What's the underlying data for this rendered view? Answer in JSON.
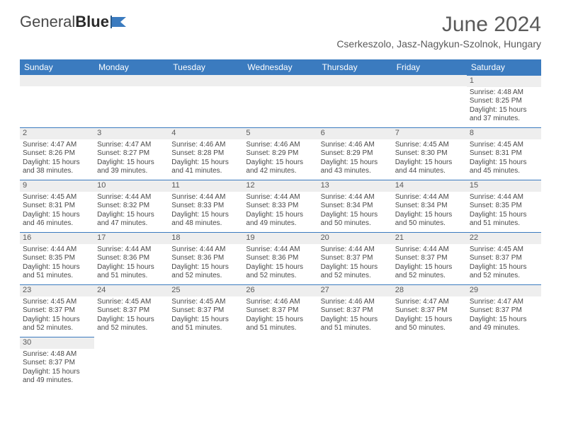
{
  "logo": {
    "text1": "General",
    "text2": "Blue"
  },
  "title": "June 2024",
  "location": "Cserkeszolo, Jasz-Nagykun-Szolnok, Hungary",
  "day_names": [
    "Sunday",
    "Monday",
    "Tuesday",
    "Wednesday",
    "Thursday",
    "Friday",
    "Saturday"
  ],
  "colors": {
    "header_bg": "#3b7bbf",
    "header_fg": "#ffffff",
    "row_alt": "#eeeeee",
    "border": "#3b7bbf",
    "text": "#4a4a4a"
  },
  "weeks": [
    [
      {
        "num": "",
        "sunrise": "",
        "sunset": "",
        "daylight": ""
      },
      {
        "num": "",
        "sunrise": "",
        "sunset": "",
        "daylight": ""
      },
      {
        "num": "",
        "sunrise": "",
        "sunset": "",
        "daylight": ""
      },
      {
        "num": "",
        "sunrise": "",
        "sunset": "",
        "daylight": ""
      },
      {
        "num": "",
        "sunrise": "",
        "sunset": "",
        "daylight": ""
      },
      {
        "num": "",
        "sunrise": "",
        "sunset": "",
        "daylight": ""
      },
      {
        "num": "1",
        "sunrise": "Sunrise: 4:48 AM",
        "sunset": "Sunset: 8:25 PM",
        "daylight": "Daylight: 15 hours and 37 minutes."
      }
    ],
    [
      {
        "num": "2",
        "sunrise": "Sunrise: 4:47 AM",
        "sunset": "Sunset: 8:26 PM",
        "daylight": "Daylight: 15 hours and 38 minutes."
      },
      {
        "num": "3",
        "sunrise": "Sunrise: 4:47 AM",
        "sunset": "Sunset: 8:27 PM",
        "daylight": "Daylight: 15 hours and 39 minutes."
      },
      {
        "num": "4",
        "sunrise": "Sunrise: 4:46 AM",
        "sunset": "Sunset: 8:28 PM",
        "daylight": "Daylight: 15 hours and 41 minutes."
      },
      {
        "num": "5",
        "sunrise": "Sunrise: 4:46 AM",
        "sunset": "Sunset: 8:29 PM",
        "daylight": "Daylight: 15 hours and 42 minutes."
      },
      {
        "num": "6",
        "sunrise": "Sunrise: 4:46 AM",
        "sunset": "Sunset: 8:29 PM",
        "daylight": "Daylight: 15 hours and 43 minutes."
      },
      {
        "num": "7",
        "sunrise": "Sunrise: 4:45 AM",
        "sunset": "Sunset: 8:30 PM",
        "daylight": "Daylight: 15 hours and 44 minutes."
      },
      {
        "num": "8",
        "sunrise": "Sunrise: 4:45 AM",
        "sunset": "Sunset: 8:31 PM",
        "daylight": "Daylight: 15 hours and 45 minutes."
      }
    ],
    [
      {
        "num": "9",
        "sunrise": "Sunrise: 4:45 AM",
        "sunset": "Sunset: 8:31 PM",
        "daylight": "Daylight: 15 hours and 46 minutes."
      },
      {
        "num": "10",
        "sunrise": "Sunrise: 4:44 AM",
        "sunset": "Sunset: 8:32 PM",
        "daylight": "Daylight: 15 hours and 47 minutes."
      },
      {
        "num": "11",
        "sunrise": "Sunrise: 4:44 AM",
        "sunset": "Sunset: 8:33 PM",
        "daylight": "Daylight: 15 hours and 48 minutes."
      },
      {
        "num": "12",
        "sunrise": "Sunrise: 4:44 AM",
        "sunset": "Sunset: 8:33 PM",
        "daylight": "Daylight: 15 hours and 49 minutes."
      },
      {
        "num": "13",
        "sunrise": "Sunrise: 4:44 AM",
        "sunset": "Sunset: 8:34 PM",
        "daylight": "Daylight: 15 hours and 50 minutes."
      },
      {
        "num": "14",
        "sunrise": "Sunrise: 4:44 AM",
        "sunset": "Sunset: 8:34 PM",
        "daylight": "Daylight: 15 hours and 50 minutes."
      },
      {
        "num": "15",
        "sunrise": "Sunrise: 4:44 AM",
        "sunset": "Sunset: 8:35 PM",
        "daylight": "Daylight: 15 hours and 51 minutes."
      }
    ],
    [
      {
        "num": "16",
        "sunrise": "Sunrise: 4:44 AM",
        "sunset": "Sunset: 8:35 PM",
        "daylight": "Daylight: 15 hours and 51 minutes."
      },
      {
        "num": "17",
        "sunrise": "Sunrise: 4:44 AM",
        "sunset": "Sunset: 8:36 PM",
        "daylight": "Daylight: 15 hours and 51 minutes."
      },
      {
        "num": "18",
        "sunrise": "Sunrise: 4:44 AM",
        "sunset": "Sunset: 8:36 PM",
        "daylight": "Daylight: 15 hours and 52 minutes."
      },
      {
        "num": "19",
        "sunrise": "Sunrise: 4:44 AM",
        "sunset": "Sunset: 8:36 PM",
        "daylight": "Daylight: 15 hours and 52 minutes."
      },
      {
        "num": "20",
        "sunrise": "Sunrise: 4:44 AM",
        "sunset": "Sunset: 8:37 PM",
        "daylight": "Daylight: 15 hours and 52 minutes."
      },
      {
        "num": "21",
        "sunrise": "Sunrise: 4:44 AM",
        "sunset": "Sunset: 8:37 PM",
        "daylight": "Daylight: 15 hours and 52 minutes."
      },
      {
        "num": "22",
        "sunrise": "Sunrise: 4:45 AM",
        "sunset": "Sunset: 8:37 PM",
        "daylight": "Daylight: 15 hours and 52 minutes."
      }
    ],
    [
      {
        "num": "23",
        "sunrise": "Sunrise: 4:45 AM",
        "sunset": "Sunset: 8:37 PM",
        "daylight": "Daylight: 15 hours and 52 minutes."
      },
      {
        "num": "24",
        "sunrise": "Sunrise: 4:45 AM",
        "sunset": "Sunset: 8:37 PM",
        "daylight": "Daylight: 15 hours and 52 minutes."
      },
      {
        "num": "25",
        "sunrise": "Sunrise: 4:45 AM",
        "sunset": "Sunset: 8:37 PM",
        "daylight": "Daylight: 15 hours and 51 minutes."
      },
      {
        "num": "26",
        "sunrise": "Sunrise: 4:46 AM",
        "sunset": "Sunset: 8:37 PM",
        "daylight": "Daylight: 15 hours and 51 minutes."
      },
      {
        "num": "27",
        "sunrise": "Sunrise: 4:46 AM",
        "sunset": "Sunset: 8:37 PM",
        "daylight": "Daylight: 15 hours and 51 minutes."
      },
      {
        "num": "28",
        "sunrise": "Sunrise: 4:47 AM",
        "sunset": "Sunset: 8:37 PM",
        "daylight": "Daylight: 15 hours and 50 minutes."
      },
      {
        "num": "29",
        "sunrise": "Sunrise: 4:47 AM",
        "sunset": "Sunset: 8:37 PM",
        "daylight": "Daylight: 15 hours and 49 minutes."
      }
    ],
    [
      {
        "num": "30",
        "sunrise": "Sunrise: 4:48 AM",
        "sunset": "Sunset: 8:37 PM",
        "daylight": "Daylight: 15 hours and 49 minutes."
      },
      {
        "num": "",
        "sunrise": "",
        "sunset": "",
        "daylight": ""
      },
      {
        "num": "",
        "sunrise": "",
        "sunset": "",
        "daylight": ""
      },
      {
        "num": "",
        "sunrise": "",
        "sunset": "",
        "daylight": ""
      },
      {
        "num": "",
        "sunrise": "",
        "sunset": "",
        "daylight": ""
      },
      {
        "num": "",
        "sunrise": "",
        "sunset": "",
        "daylight": ""
      },
      {
        "num": "",
        "sunrise": "",
        "sunset": "",
        "daylight": ""
      }
    ]
  ]
}
